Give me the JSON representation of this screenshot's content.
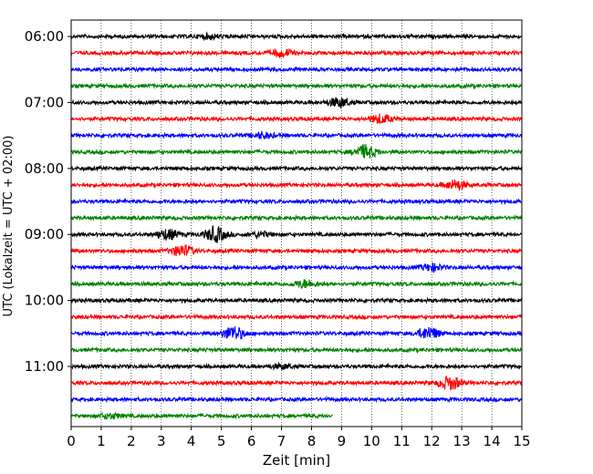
{
  "chart_data": {
    "type": "line",
    "title": "",
    "xlabel": "Zeit  [min]",
    "ylabel": "UTC (Lokalzeit = UTC + 02:00)",
    "xlim": [
      0,
      15
    ],
    "x_ticks": [
      "0",
      "1",
      "2",
      "3",
      "4",
      "5",
      "6",
      "7",
      "8",
      "9",
      "10",
      "11",
      "12",
      "13",
      "14",
      "15"
    ],
    "y_tick_labels": [
      {
        "row": 0,
        "label": "06:00"
      },
      {
        "row": 4,
        "label": "07:00"
      },
      {
        "row": 8,
        "label": "08:00"
      },
      {
        "row": 12,
        "label": "09:00"
      },
      {
        "row": 16,
        "label": "10:00"
      },
      {
        "row": 20,
        "label": "11:00"
      }
    ],
    "grid": "vertical dotted",
    "trace_colors": [
      "#000000",
      "#ff0000",
      "#0000ff",
      "#008000"
    ],
    "rows": [
      {
        "start": "06:00",
        "color": "#000000",
        "end_min": 15,
        "events": [
          {
            "t": 4.6,
            "amp": 0.25
          }
        ]
      },
      {
        "start": "06:15",
        "color": "#ff0000",
        "end_min": 15,
        "events": [
          {
            "t": 7.0,
            "amp": 0.45
          }
        ]
      },
      {
        "start": "06:30",
        "color": "#0000ff",
        "end_min": 15,
        "events": []
      },
      {
        "start": "06:45",
        "color": "#008000",
        "end_min": 15,
        "events": []
      },
      {
        "start": "07:00",
        "color": "#000000",
        "end_min": 15,
        "events": [
          {
            "t": 8.9,
            "amp": 0.6
          }
        ]
      },
      {
        "start": "07:15",
        "color": "#ff0000",
        "end_min": 15,
        "events": [
          {
            "t": 10.3,
            "amp": 0.55
          }
        ]
      },
      {
        "start": "07:30",
        "color": "#0000ff",
        "end_min": 15,
        "events": [
          {
            "t": 6.4,
            "amp": 0.35
          }
        ]
      },
      {
        "start": "07:45",
        "color": "#008000",
        "end_min": 15,
        "events": [
          {
            "t": 9.8,
            "amp": 0.85
          }
        ]
      },
      {
        "start": "08:00",
        "color": "#000000",
        "end_min": 15,
        "events": []
      },
      {
        "start": "08:15",
        "color": "#ff0000",
        "end_min": 15,
        "events": [
          {
            "t": 12.8,
            "amp": 0.6
          }
        ]
      },
      {
        "start": "08:30",
        "color": "#0000ff",
        "end_min": 15,
        "events": []
      },
      {
        "start": "08:45",
        "color": "#008000",
        "end_min": 15,
        "events": []
      },
      {
        "start": "09:00",
        "color": "#000000",
        "end_min": 15,
        "events": [
          {
            "t": 3.2,
            "amp": 0.65
          },
          {
            "t": 4.8,
            "amp": 0.95
          },
          {
            "t": 6.3,
            "amp": 0.3
          }
        ]
      },
      {
        "start": "09:15",
        "color": "#ff0000",
        "end_min": 15,
        "events": [
          {
            "t": 3.7,
            "amp": 0.75
          }
        ]
      },
      {
        "start": "09:30",
        "color": "#0000ff",
        "end_min": 15,
        "events": [
          {
            "t": 12.0,
            "amp": 0.45
          }
        ]
      },
      {
        "start": "09:45",
        "color": "#008000",
        "end_min": 15,
        "events": [
          {
            "t": 7.8,
            "amp": 0.5
          }
        ]
      },
      {
        "start": "10:00",
        "color": "#000000",
        "end_min": 15,
        "events": []
      },
      {
        "start": "10:15",
        "color": "#ff0000",
        "end_min": 15,
        "events": []
      },
      {
        "start": "10:30",
        "color": "#0000ff",
        "end_min": 15,
        "events": [
          {
            "t": 5.4,
            "amp": 0.9
          },
          {
            "t": 11.9,
            "amp": 0.8
          }
        ]
      },
      {
        "start": "10:45",
        "color": "#008000",
        "end_min": 15,
        "events": []
      },
      {
        "start": "11:00",
        "color": "#000000",
        "end_min": 15,
        "events": [
          {
            "t": 7.0,
            "amp": 0.25
          }
        ]
      },
      {
        "start": "11:15",
        "color": "#ff0000",
        "end_min": 15,
        "events": [
          {
            "t": 12.6,
            "amp": 0.85
          }
        ]
      },
      {
        "start": "11:30",
        "color": "#0000ff",
        "end_min": 15,
        "events": []
      },
      {
        "start": "11:45",
        "color": "#008000",
        "end_min": 8.7,
        "events": [
          {
            "t": 1.3,
            "amp": 0.3
          }
        ]
      }
    ]
  }
}
